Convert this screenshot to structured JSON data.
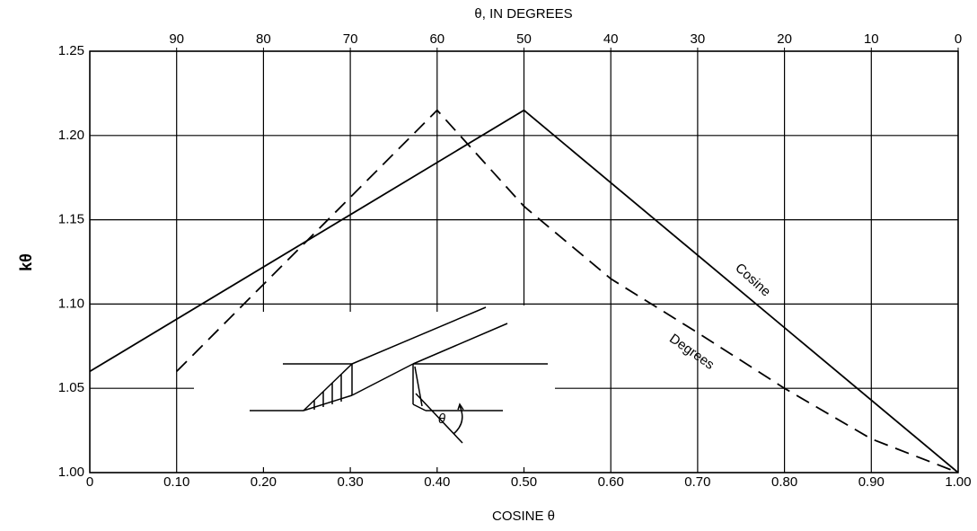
{
  "chart_data": {
    "type": "line",
    "title": "θ, IN DEGREES",
    "x_label": "COSINE θ",
    "y_label": "kθ",
    "xlim": [
      0,
      1
    ],
    "xticks": [
      0,
      {
        "value": 0.1,
        "label": "0.10"
      },
      {
        "value": 0.2,
        "label": "0.20"
      },
      {
        "value": 0.3,
        "label": "0.30"
      },
      {
        "value": 0.4,
        "label": "0.40"
      },
      {
        "value": 0.5,
        "label": "0.50"
      },
      {
        "value": 0.6,
        "label": "0.60"
      },
      {
        "value": 0.7,
        "label": "0.70"
      },
      {
        "value": 0.8,
        "label": "0.80"
      },
      {
        "value": 0.9,
        "label": "0.90"
      },
      {
        "value": 1,
        "label": "1.00"
      }
    ],
    "x2lim": [
      100,
      0
    ],
    "x2ticks": [
      90,
      80,
      70,
      60,
      50,
      40,
      30,
      20,
      10,
      0
    ],
    "ylim": [
      1,
      1.25
    ],
    "yticks": [
      {
        "value": 1,
        "label": "1.00"
      },
      1.05,
      {
        "value": 1.1,
        "label": "1.10"
      },
      1.15,
      {
        "value": 1.2,
        "label": "1.20"
      },
      1.25
    ],
    "grid": true,
    "series": [
      {
        "name": "Cosine",
        "color": "#000000",
        "dash": false,
        "x": [
          0,
          0.5,
          1
        ],
        "values": [
          1.06,
          1.215,
          1.0
        ]
      },
      {
        "name": "Degrees",
        "color": "#000000",
        "dash": true,
        "x": [
          0.1,
          0.4,
          0.5,
          0.6,
          0.7,
          0.8,
          0.9,
          1
        ],
        "values": [
          1.06,
          1.215,
          1.158,
          1.115,
          1.083,
          1.05,
          1.02,
          1.0
        ]
      }
    ],
    "inset_label": "θ"
  }
}
